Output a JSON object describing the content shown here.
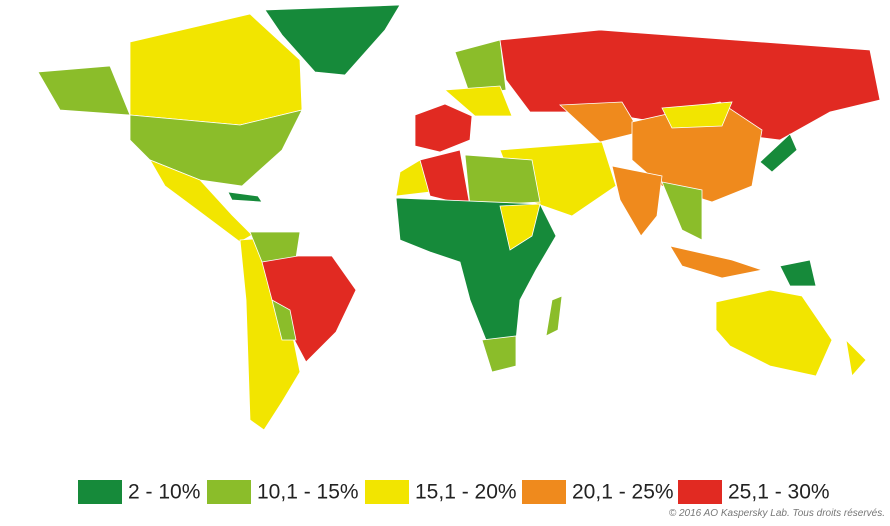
{
  "legend": [
    {
      "label": "2 - 10%",
      "color": "#168a3a"
    },
    {
      "label": "10,1 - 15%",
      "color": "#8bbd2a"
    },
    {
      "label": "15,1 - 20%",
      "color": "#f2e500"
    },
    {
      "label": "20,1 - 25%",
      "color": "#ef8a1d"
    },
    {
      "label": "25,1 - 30%",
      "color": "#e12a22"
    }
  ],
  "copyright": "© 2016 AO Kaspersky Lab. Tous droits réservés."
}
